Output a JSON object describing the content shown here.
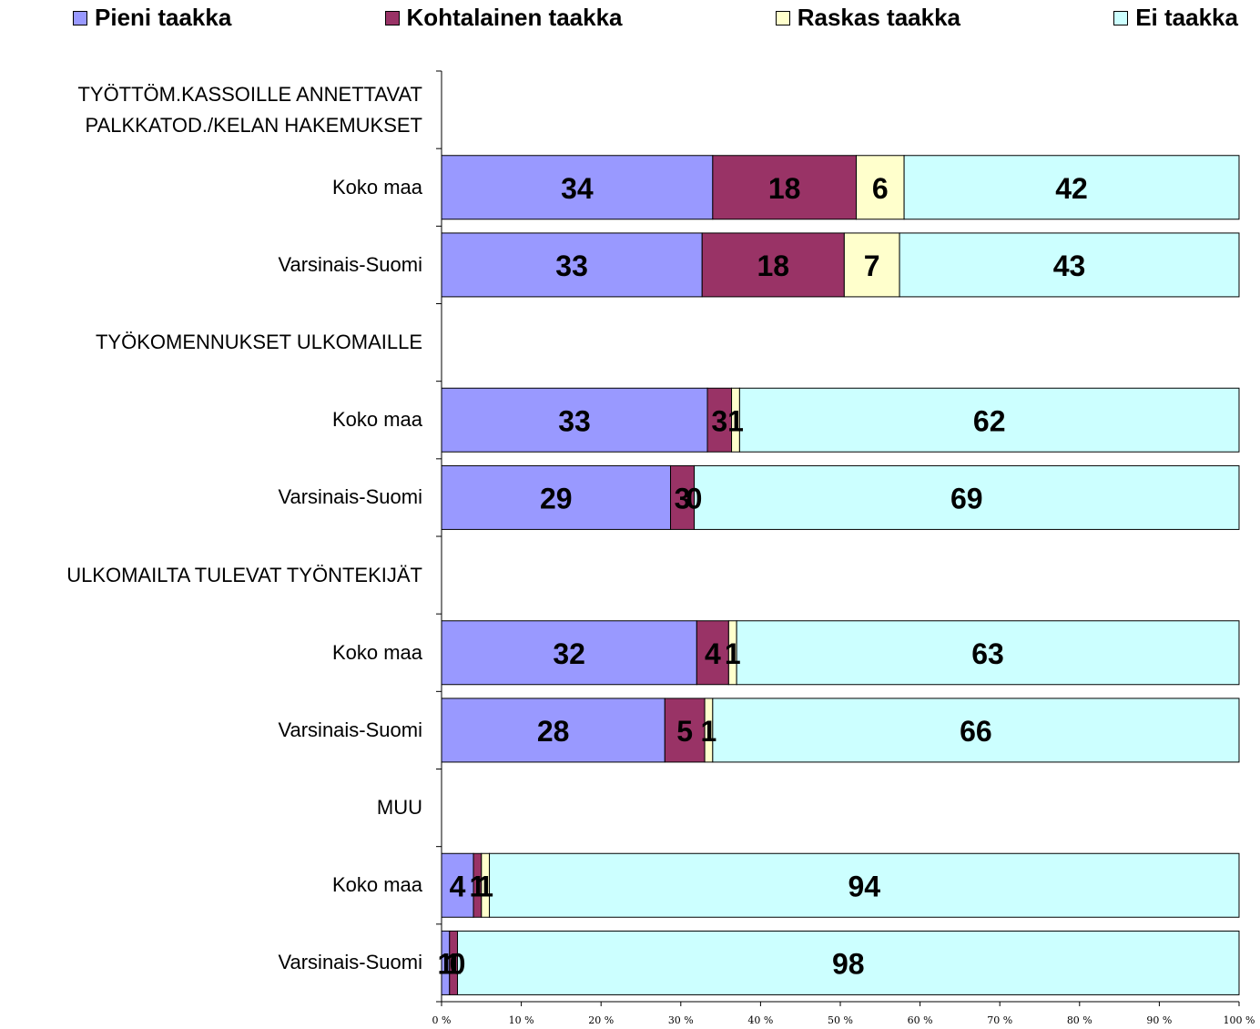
{
  "chart_data": {
    "type": "bar",
    "orientation": "horizontal",
    "stack": "percent",
    "categories": [
      "TYÖTTÖM.KASSOILLE ANNETTAVAT PALKKATOD./KELAN HAKEMUKSET",
      "Koko maa",
      "Varsinais-Suomi",
      "TYÖKOMENNUKSET ULKOMAILLE",
      "Koko maa",
      "Varsinais-Suomi",
      "ULKOMAILTA TULEVAT TYÖNTEKIJÄT",
      "Koko maa",
      "Varsinais-Suomi",
      "MUU",
      "Koko maa",
      "Varsinais-Suomi"
    ],
    "series": [
      {
        "name": "Pieni taakka",
        "color": "#9999ff",
        "values": [
          null,
          34,
          33,
          null,
          33,
          29,
          null,
          32,
          28,
          null,
          4,
          1
        ]
      },
      {
        "name": "Kohtalainen taakka",
        "color": "#993366",
        "values": [
          null,
          18,
          18,
          null,
          3,
          3,
          null,
          4,
          5,
          null,
          1,
          1
        ]
      },
      {
        "name": "Raskas taakka",
        "color": "#ffffcc",
        "values": [
          null,
          6,
          7,
          null,
          1,
          0,
          null,
          1,
          1,
          null,
          1,
          0
        ]
      },
      {
        "name": "Ei taakka",
        "color": "#ccffff",
        "values": [
          null,
          42,
          43,
          null,
          62,
          69,
          null,
          63,
          66,
          null,
          94,
          98
        ]
      }
    ],
    "xlim": [
      0,
      100
    ],
    "xticks": [
      {
        "value": 0,
        "label": "0 %"
      },
      {
        "value": 10,
        "label": "10 %"
      },
      {
        "value": 20,
        "label": "20 %"
      },
      {
        "value": 30,
        "label": "30 %"
      },
      {
        "value": 40,
        "label": "40 %"
      },
      {
        "value": 50,
        "label": "50 %"
      },
      {
        "value": 60,
        "label": "60 %"
      },
      {
        "value": 70,
        "label": "70 %"
      },
      {
        "value": 80,
        "label": "80 %"
      },
      {
        "value": 90,
        "label": "90 %"
      },
      {
        "value": 100,
        "label": "100 %"
      }
    ],
    "legend": "top"
  }
}
